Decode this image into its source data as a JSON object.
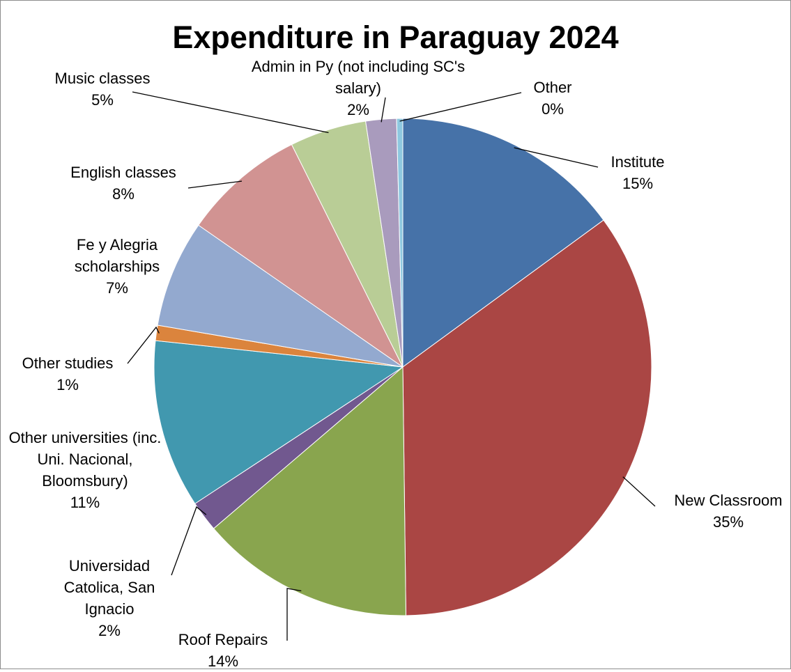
{
  "chart_data": {
    "type": "pie",
    "title": "Expenditure in Paraguay 2024",
    "categories": [
      "Institute",
      "New Classroom",
      "Roof Repairs",
      "Universidad Catolica, San Ignacio",
      "Other universities (inc. Uni. Nacional, Bloomsbury)",
      "Other studies",
      "Fe y Alegria scholarships",
      "English classes",
      "Music classes",
      "Admin in Py (not including SC's salary)",
      "Other"
    ],
    "values": [
      15,
      35,
      14,
      2,
      11,
      1,
      7,
      8,
      5,
      2,
      0.4
    ],
    "value_labels": [
      "15%",
      "35%",
      "14%",
      "2%",
      "11%",
      "1%",
      "7%",
      "8%",
      "5%",
      "2%",
      "0%"
    ],
    "colors": [
      "#4672a8",
      "#aa4644",
      "#89a54e",
      "#71588f",
      "#4198af",
      "#db843d",
      "#93a9cf",
      "#d19392",
      "#b9cd96",
      "#a99bbd",
      "#8ec8e0"
    ]
  }
}
